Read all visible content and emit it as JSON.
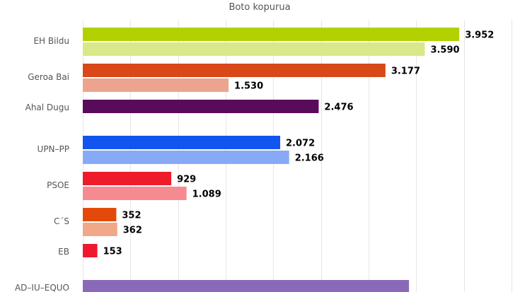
{
  "chart_data": {
    "type": "bar",
    "orientation": "horizontal",
    "title": "Boto kopurua",
    "xlabel": "",
    "ylabel": "",
    "xlim": [
      0,
      4500
    ],
    "grid": true,
    "categories": [
      "EH Bildu",
      "Geroa Bai",
      "Ahal Dugu",
      "UPN–PP",
      "PSOE",
      "C´S",
      "EB",
      "AD–IU–EQUO"
    ],
    "bars": [
      {
        "category": 0,
        "slot": 0,
        "value": 3952,
        "label": "3.952",
        "color": "#b3d100"
      },
      {
        "category": 0,
        "slot": 1,
        "value": 3590,
        "label": "3.590",
        "color": "#d8e98a"
      },
      {
        "category": 1,
        "slot": 0,
        "value": 3177,
        "label": "3.177",
        "color": "#d84818"
      },
      {
        "category": 1,
        "slot": 1,
        "value": 1530,
        "label": "1.530",
        "color": "#eda48e"
      },
      {
        "category": 2,
        "slot": 0,
        "value": 2476,
        "label": "2.476",
        "color": "#5a0a5a"
      },
      {
        "category": 3,
        "slot": 0,
        "value": 2072,
        "label": "2.072",
        "color": "#1155ee"
      },
      {
        "category": 3,
        "slot": 1,
        "value": 2166,
        "label": "2.166",
        "color": "#88aaf6"
      },
      {
        "category": 4,
        "slot": 0,
        "value": 929,
        "label": "929",
        "color": "#ee1c2a"
      },
      {
        "category": 4,
        "slot": 1,
        "value": 1089,
        "label": "1.089",
        "color": "#f58b91"
      },
      {
        "category": 5,
        "slot": 0,
        "value": 352,
        "label": "352",
        "color": "#e34a0a"
      },
      {
        "category": 5,
        "slot": 1,
        "value": 362,
        "label": "362",
        "color": "#f0a888"
      },
      {
        "category": 6,
        "slot": 0,
        "value": 153,
        "label": "153",
        "color": "#f0182e"
      },
      {
        "category": 7,
        "slot": 0,
        "value": 3424,
        "label": "",
        "color": "#8a6ab8"
      }
    ]
  }
}
